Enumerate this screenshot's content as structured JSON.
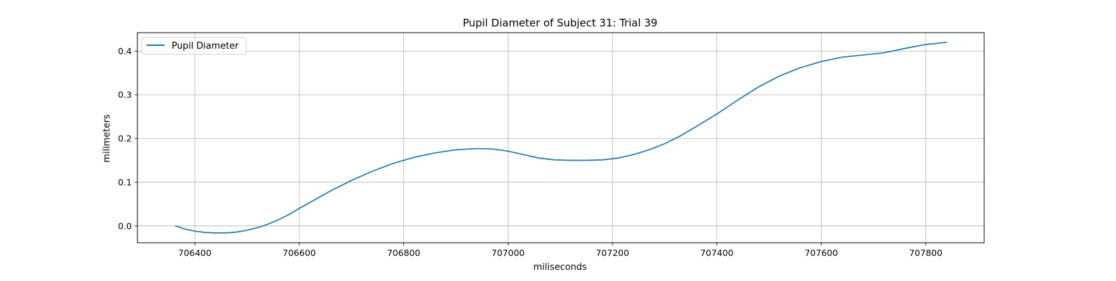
{
  "chart_data": {
    "type": "line",
    "title": "Pupil Diameter of Subject 31: Trial 39",
    "xlabel": "miliseconds",
    "ylabel": "milimeters",
    "xlim": [
      706290,
      707912
    ],
    "ylim": [
      -0.0385,
      0.442
    ],
    "xticks": [
      706400,
      706600,
      706800,
      707000,
      707200,
      707400,
      707600,
      707800
    ],
    "yticks": [
      0.0,
      0.1,
      0.2,
      0.3,
      0.4
    ],
    "ytick_labels": [
      "0.0",
      "0.1",
      "0.2",
      "0.3",
      "0.4"
    ],
    "grid": true,
    "legend": {
      "position": "upper-left",
      "entries": [
        "Pupil Diameter"
      ]
    },
    "series": [
      {
        "name": "Pupil Diameter",
        "color": "#1f77b4",
        "x": [
          706363,
          706380,
          706400,
          706420,
          706440,
          706460,
          706480,
          706500,
          706520,
          706540,
          706560,
          706580,
          706600,
          706630,
          706660,
          706700,
          706740,
          706780,
          706820,
          706860,
          706900,
          706940,
          706970,
          707000,
          707030,
          707060,
          707090,
          707120,
          707150,
          707180,
          707210,
          707240,
          707270,
          707300,
          707330,
          707360,
          707400,
          707440,
          707480,
          707520,
          707560,
          707600,
          707640,
          707680,
          707720,
          707760,
          707800,
          707840
        ],
        "y": [
          0.0,
          -0.007,
          -0.012,
          -0.015,
          -0.016,
          -0.016,
          -0.014,
          -0.01,
          -0.004,
          0.004,
          0.014,
          0.026,
          0.04,
          0.06,
          0.08,
          0.104,
          0.125,
          0.143,
          0.157,
          0.167,
          0.174,
          0.177,
          0.176,
          0.171,
          0.163,
          0.155,
          0.151,
          0.15,
          0.15,
          0.151,
          0.155,
          0.163,
          0.174,
          0.188,
          0.206,
          0.227,
          0.256,
          0.288,
          0.318,
          0.343,
          0.362,
          0.376,
          0.386,
          0.391,
          0.396,
          0.406,
          0.415,
          0.42
        ]
      }
    ]
  }
}
